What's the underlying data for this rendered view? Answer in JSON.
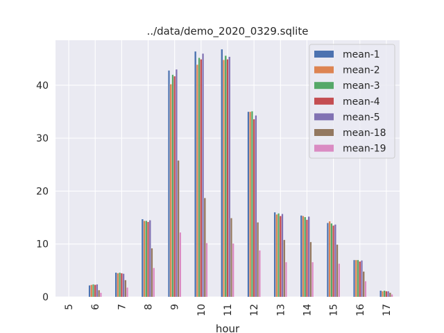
{
  "chart_data": {
    "type": "bar",
    "title": "../data/demo_2020_0329.sqlite",
    "xlabel": "hour",
    "ylabel": "",
    "ylim": [
      0,
      48.5
    ],
    "yticks": [
      0,
      10,
      20,
      30,
      40
    ],
    "grid": true,
    "legend_position": "top-right",
    "categories": [
      "5",
      "6",
      "7",
      "8",
      "9",
      "10",
      "11",
      "12",
      "13",
      "14",
      "15",
      "16",
      "17"
    ],
    "series": [
      {
        "name": "mean-1",
        "color": "#4c72b0",
        "values": [
          0,
          2.2,
          4.6,
          14.7,
          42.8,
          46.4,
          46.8,
          35.0,
          16.0,
          15.4,
          14.0,
          7.0,
          1.2
        ]
      },
      {
        "name": "mean-2",
        "color": "#dd8452",
        "values": [
          0,
          2.3,
          4.5,
          14.4,
          40.2,
          43.9,
          44.8,
          35.0,
          15.6,
          15.3,
          14.3,
          7.0,
          1.1
        ]
      },
      {
        "name": "mean-3",
        "color": "#55a868",
        "values": [
          0,
          2.4,
          4.6,
          14.4,
          42.0,
          45.2,
          45.6,
          35.1,
          15.8,
          15.1,
          13.9,
          7.0,
          1.2
        ]
      },
      {
        "name": "mean-4",
        "color": "#c44e52",
        "values": [
          0,
          2.3,
          4.5,
          14.2,
          41.7,
          44.9,
          44.9,
          33.6,
          15.3,
          14.6,
          13.5,
          6.7,
          1.1
        ]
      },
      {
        "name": "mean-5",
        "color": "#8172b3",
        "values": [
          0,
          2.4,
          4.4,
          14.5,
          43.0,
          46.0,
          45.4,
          34.3,
          15.7,
          15.2,
          13.7,
          6.9,
          1.1
        ]
      },
      {
        "name": "mean-18",
        "color": "#937860",
        "values": [
          0,
          1.3,
          3.2,
          9.2,
          25.8,
          18.7,
          14.9,
          14.1,
          10.8,
          10.4,
          9.9,
          4.8,
          0.8
        ]
      },
      {
        "name": "mean-19",
        "color": "#da8bc3",
        "values": [
          0,
          0.8,
          1.8,
          5.5,
          12.2,
          10.2,
          10.1,
          8.8,
          6.6,
          6.6,
          6.3,
          3.0,
          0.5
        ]
      }
    ]
  }
}
